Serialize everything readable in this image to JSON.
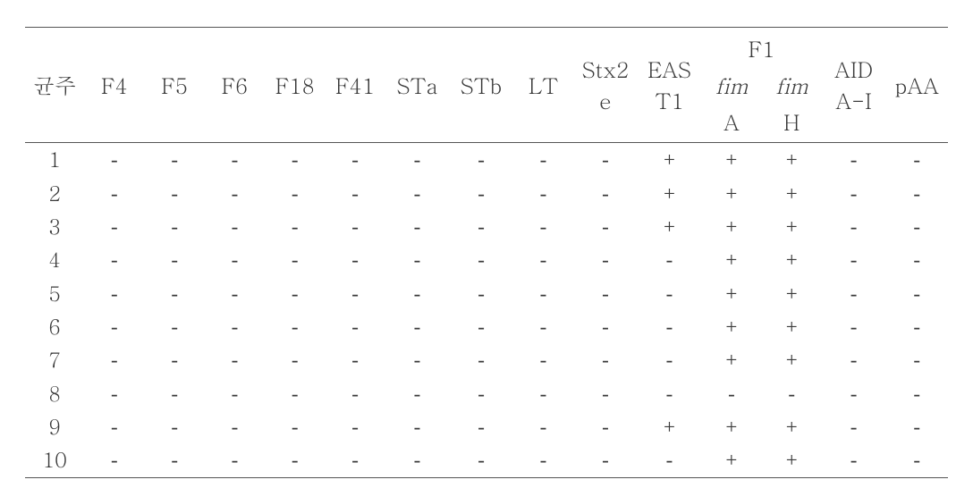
{
  "table": {
    "columns_top": [
      {
        "key": "strain",
        "label": "균주",
        "stack": [
          "균주"
        ]
      },
      {
        "key": "F4",
        "label": "F4",
        "stack": [
          "F4"
        ]
      },
      {
        "key": "F5",
        "label": "F5",
        "stack": [
          "F5"
        ]
      },
      {
        "key": "F6",
        "label": "F6",
        "stack": [
          "F6"
        ]
      },
      {
        "key": "F18",
        "label": "F18",
        "stack": [
          "F18"
        ]
      },
      {
        "key": "F41",
        "label": "F41",
        "stack": [
          "F41"
        ]
      },
      {
        "key": "STa",
        "label": "STa",
        "stack": [
          "STa"
        ]
      },
      {
        "key": "STb",
        "label": "STb",
        "stack": [
          "STb"
        ]
      },
      {
        "key": "LT",
        "label": "LT",
        "stack": [
          "LT"
        ]
      },
      {
        "key": "Stx2e",
        "label": "Stx2e",
        "stack": [
          "Stx2",
          "e"
        ]
      },
      {
        "key": "EAST1",
        "label": "EAST1",
        "stack": [
          "EAS",
          "T1"
        ]
      },
      {
        "key": "F1_group",
        "label": "F1",
        "group": true,
        "children": [
          {
            "key": "fimA",
            "stack_italic": "fim",
            "stack_plain": "A"
          },
          {
            "key": "fimH",
            "stack_italic": "fim",
            "stack_plain": "H"
          }
        ]
      },
      {
        "key": "AIDA-I",
        "label": "AIDA-I",
        "stack": [
          "AID",
          "A-I"
        ]
      },
      {
        "key": "pAA",
        "label": "pAA",
        "stack": [
          "pAA"
        ]
      }
    ],
    "row_labels": [
      "1",
      "2",
      "3",
      "4",
      "5",
      "6",
      "7",
      "8",
      "9",
      "10"
    ],
    "rows": [
      [
        "-",
        "-",
        "-",
        "-",
        "-",
        "-",
        "-",
        "-",
        "-",
        "+",
        "+",
        "+",
        "-",
        "-"
      ],
      [
        "-",
        "-",
        "-",
        "-",
        "-",
        "-",
        "-",
        "-",
        "-",
        "+",
        "+",
        "+",
        "-",
        "-"
      ],
      [
        "-",
        "-",
        "-",
        "-",
        "-",
        "-",
        "-",
        "-",
        "-",
        "+",
        "+",
        "+",
        "-",
        "-"
      ],
      [
        "-",
        "-",
        "-",
        "-",
        "-",
        "-",
        "-",
        "-",
        "-",
        "-",
        "+",
        "+",
        "-",
        "-"
      ],
      [
        "-",
        "-",
        "-",
        "-",
        "-",
        "-",
        "-",
        "-",
        "-",
        "-",
        "+",
        "+",
        "-",
        "-"
      ],
      [
        "-",
        "-",
        "-",
        "-",
        "-",
        "-",
        "-",
        "-",
        "-",
        "-",
        "+",
        "+",
        "-",
        "-"
      ],
      [
        "-",
        "-",
        "-",
        "-",
        "-",
        "-",
        "-",
        "-",
        "-",
        "-",
        "+",
        "+",
        "-",
        "-"
      ],
      [
        "-",
        "-",
        "-",
        "-",
        "-",
        "-",
        "-",
        "-",
        "-",
        "-",
        "-",
        "-",
        "-",
        "-"
      ],
      [
        "-",
        "-",
        "-",
        "-",
        "-",
        "-",
        "-",
        "-",
        "-",
        "+",
        "+",
        "+",
        "-",
        "-"
      ],
      [
        "-",
        "-",
        "-",
        "-",
        "-",
        "-",
        "-",
        "-",
        "-",
        "-",
        "+",
        "+",
        "-",
        "-"
      ]
    ],
    "glyphs": {
      "-": "-",
      "+": "+"
    },
    "colors": {
      "text": "#3a3a3a",
      "rule": "#555555",
      "bg": "#ffffff"
    },
    "font": {
      "family": "Batang / Times New Roman serif",
      "size_header": 24,
      "size_body": 23,
      "italic_cols": [
        "fimA",
        "fimH"
      ]
    }
  }
}
